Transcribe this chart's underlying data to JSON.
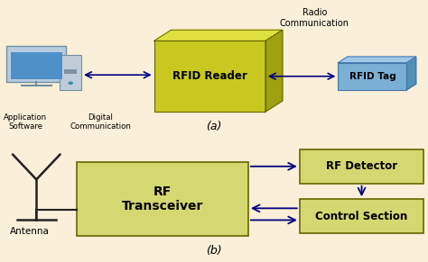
{
  "bg_color": "#faefd8",
  "rfid_reader_front_color": "#c8c820",
  "rfid_reader_side_color": "#a0a010",
  "rfid_reader_top_color": "#e0e040",
  "rfid_tag_front_color": "#7ab0d4",
  "rfid_tag_side_color": "#5090b4",
  "rfid_tag_top_color": "#a0c8e8",
  "rf_transceiver_color": "#d4d870",
  "rf_detector_color": "#d4d870",
  "control_section_color": "#d4d870",
  "box_edge_color": "#666600",
  "tag_edge_color": "#4477aa",
  "text_color": "#000000",
  "arrow_color": "#000080",
  "antenna_color": "#222222",
  "label_a": "(a)",
  "label_b": "(b)",
  "rfid_reader_text": "RFID Reader",
  "rfid_tag_text": "RFID Tag",
  "rf_transceiver_text": "RF\nTransceiver",
  "rf_detector_text": "RF Detector",
  "control_section_text": "Control Section",
  "radio_comm_text": "Radio\nCommunication",
  "digital_comm_text": "Digital\nCommunication",
  "app_software_text": "Application\nSoftware",
  "antenna_text": "Antenna"
}
